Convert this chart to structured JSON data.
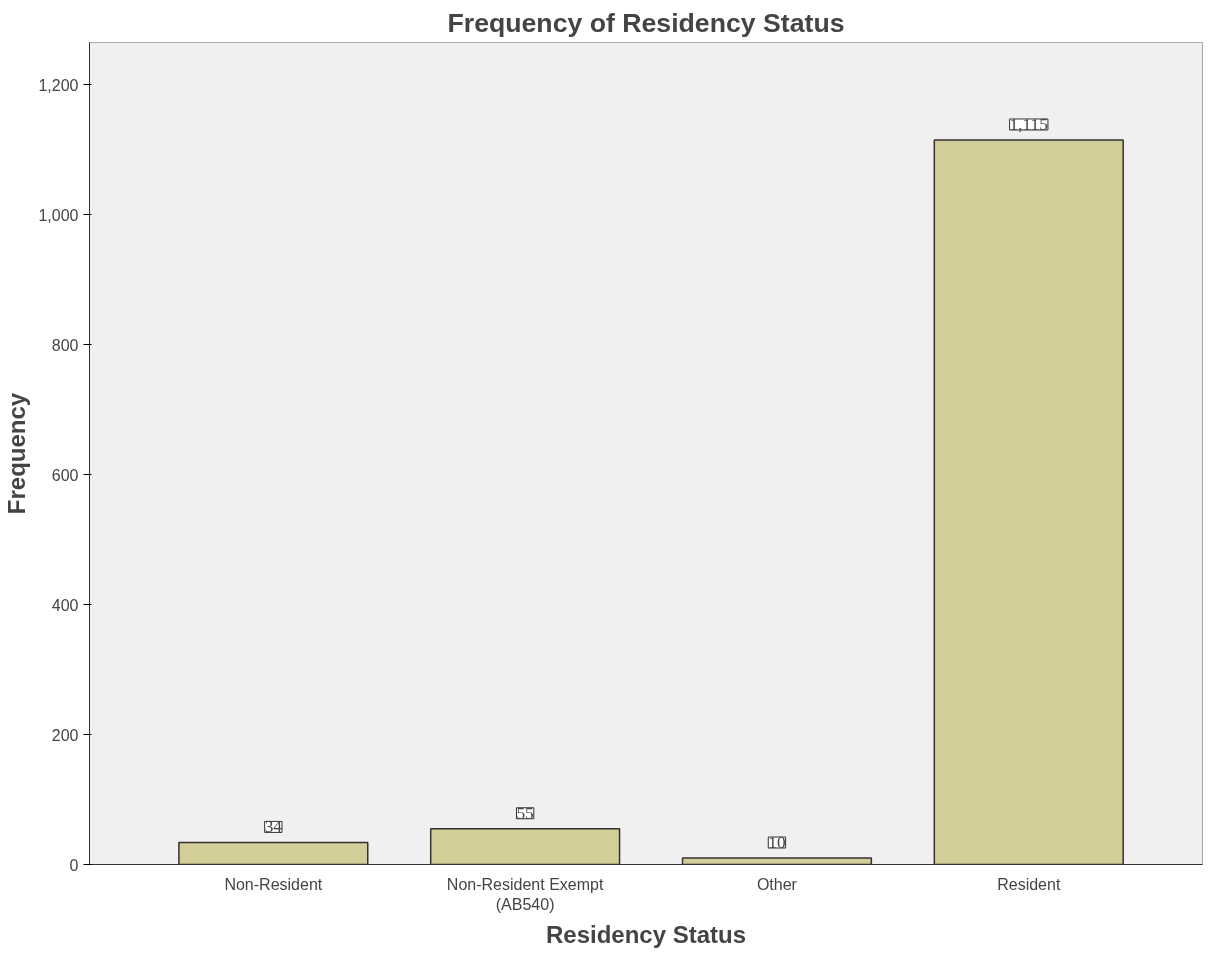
{
  "chart_data": {
    "type": "bar",
    "title": "Frequency of Residency Status",
    "xlabel": "Residency Status",
    "ylabel": "Frequency",
    "categories": [
      "Non-Resident",
      "Non-Resident Exempt\n(AB540)",
      "Other",
      "Resident"
    ],
    "values": [
      34,
      55,
      10,
      1115
    ],
    "color": "#d3cd98",
    "ylim": [
      0,
      1265
    ],
    "yticks": [
      0,
      200,
      400,
      600,
      800,
      {
        "value": 1000,
        "label": "1,000"
      },
      {
        "value": 1200,
        "label": "1,200"
      }
    ],
    "value_labels": [
      "34",
      "55",
      "10",
      "1,115"
    ],
    "grid": false
  }
}
